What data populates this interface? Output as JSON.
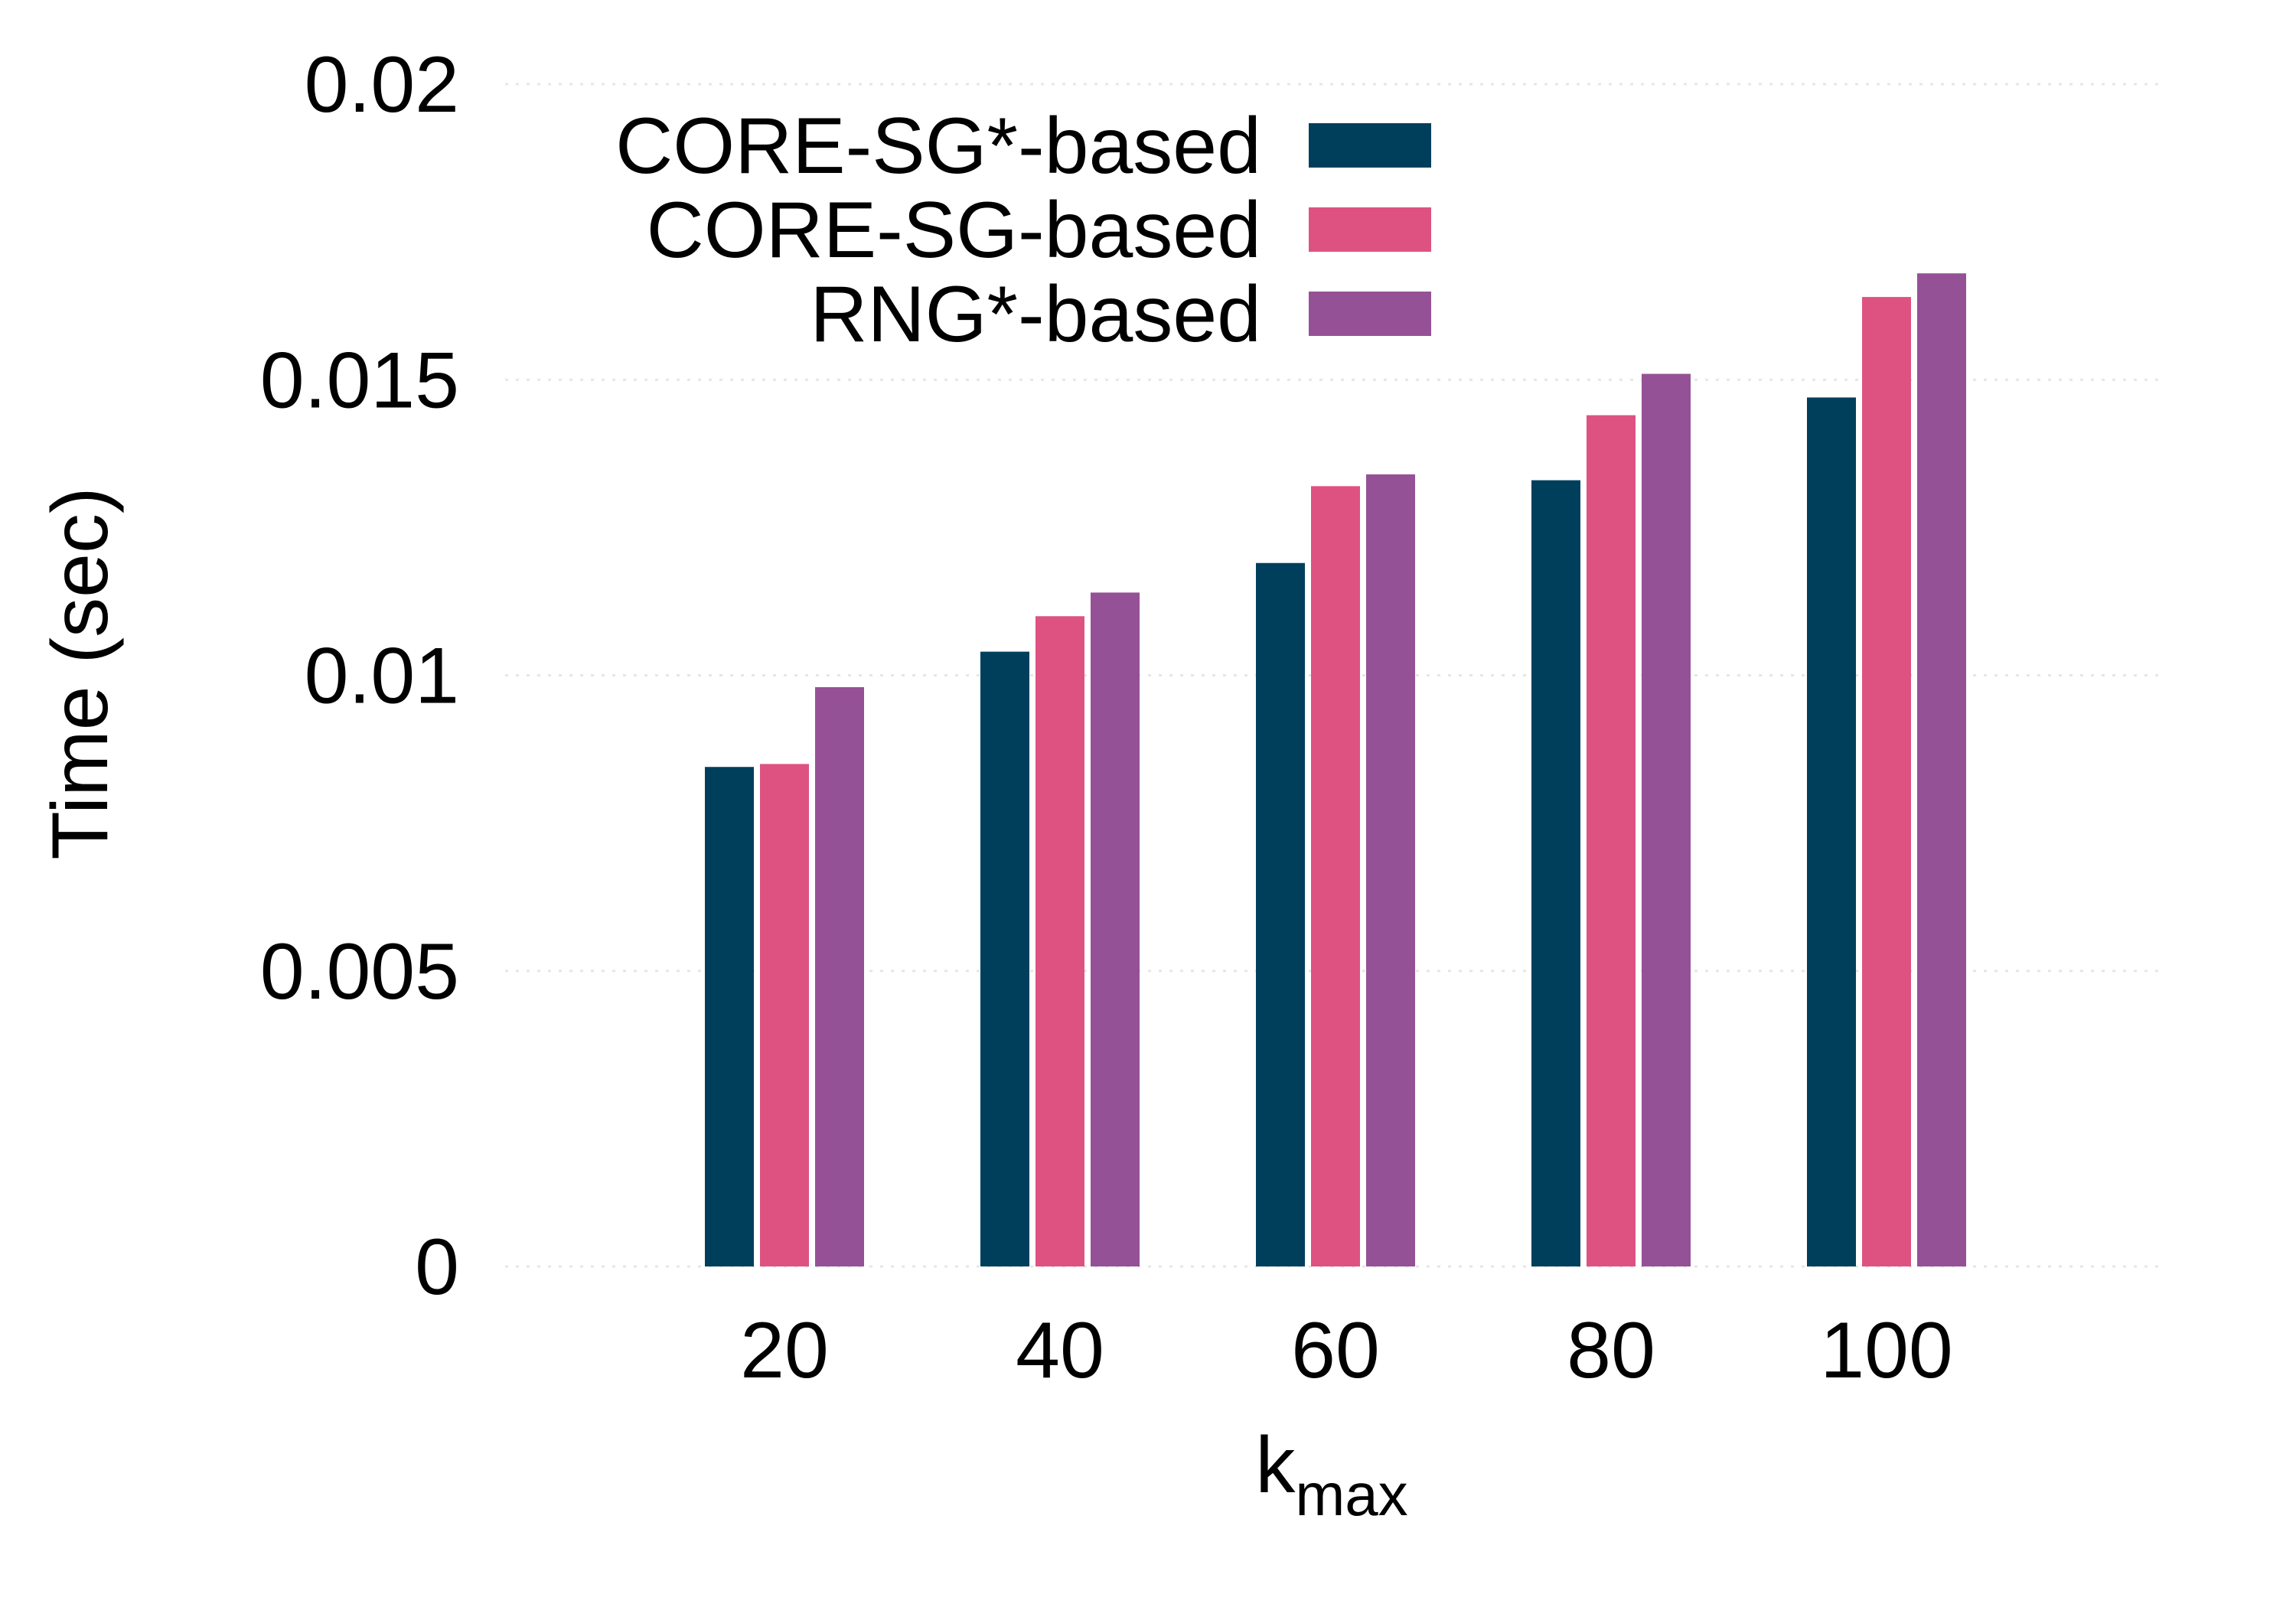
{
  "chart_data": {
    "type": "bar",
    "title": "",
    "xlabel": "k",
    "xlabel_subscript": "max",
    "ylabel": "Time (sec)",
    "ylim": [
      0,
      0.02
    ],
    "y_ticks": [
      0,
      0.005,
      0.01,
      0.015,
      0.02
    ],
    "y_tick_labels": [
      "0",
      "0.005",
      "0.01",
      "0.015",
      "0.02"
    ],
    "categories": [
      "20",
      "40",
      "60",
      "80",
      "100"
    ],
    "grid": true,
    "legend_position": "top-left",
    "series": [
      {
        "name": "CORE-SG*-based",
        "color": "#003f5c",
        "values": [
          0.00845,
          0.0104,
          0.0119,
          0.0133,
          0.0147
        ]
      },
      {
        "name": "CORE-SG-based",
        "color": "#de5282",
        "values": [
          0.0085,
          0.011,
          0.0132,
          0.0144,
          0.0164
        ]
      },
      {
        "name": "RNG*-based",
        "color": "#955196",
        "values": [
          0.0098,
          0.0114,
          0.0134,
          0.0151,
          0.0168
        ]
      }
    ]
  }
}
